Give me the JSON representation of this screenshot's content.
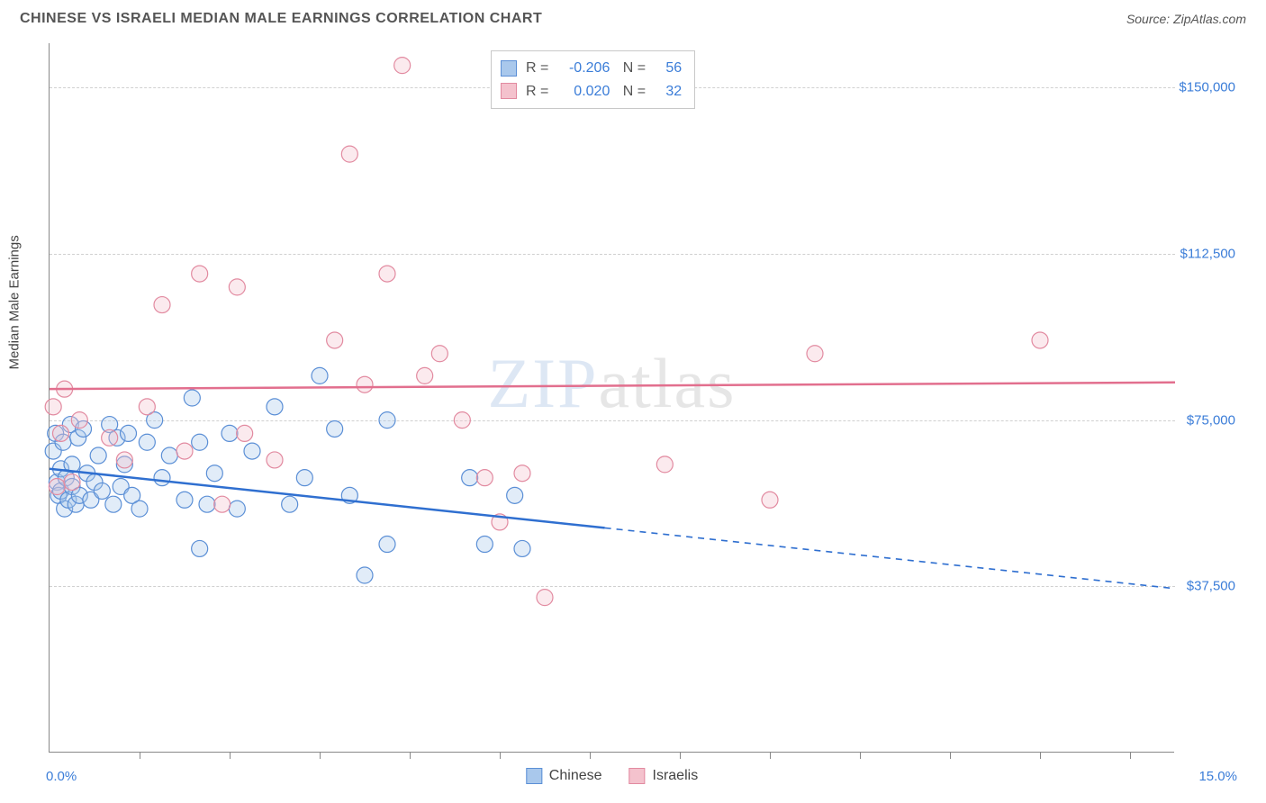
{
  "header": {
    "title": "CHINESE VS ISRAELI MEDIAN MALE EARNINGS CORRELATION CHART",
    "source": "Source: ZipAtlas.com"
  },
  "watermark": {
    "part1": "ZIP",
    "part2": "atlas"
  },
  "chart": {
    "type": "scatter",
    "background_color": "#ffffff",
    "grid_color": "#d0d0d0",
    "axis_color": "#888888",
    "label_color": "#3b7dd8",
    "yaxis_title": "Median Male Earnings",
    "xlim": [
      0,
      15
    ],
    "ylim": [
      0,
      160000
    ],
    "yticks": [
      {
        "value": 37500,
        "label": "$37,500"
      },
      {
        "value": 75000,
        "label": "$75,000"
      },
      {
        "value": 112500,
        "label": "$112,500"
      },
      {
        "value": 150000,
        "label": "$150,000"
      }
    ],
    "xtick_values": [
      1.2,
      2.4,
      3.6,
      4.8,
      6.0,
      7.2,
      8.4,
      9.6,
      10.8,
      12.0,
      13.2,
      14.4
    ],
    "xaxis_min_label": "0.0%",
    "xaxis_max_label": "15.0%",
    "marker_radius": 9,
    "marker_stroke_width": 1.2,
    "marker_fill_opacity": 0.35,
    "series": [
      {
        "name": "Chinese",
        "color_fill": "#a9c8ec",
        "color_stroke": "#5b8fd6",
        "line_color": "#2f6fd0",
        "R": "-0.206",
        "N": "56",
        "trend": {
          "y_at_xmin": 64000,
          "y_at_xmax": 37000,
          "solid_until_x": 7.4
        },
        "points": [
          [
            0.05,
            68000
          ],
          [
            0.08,
            72000
          ],
          [
            0.1,
            61000
          ],
          [
            0.12,
            58000
          ],
          [
            0.15,
            64000
          ],
          [
            0.15,
            59000
          ],
          [
            0.18,
            70000
          ],
          [
            0.2,
            55000
          ],
          [
            0.22,
            62000
          ],
          [
            0.25,
            57000
          ],
          [
            0.28,
            74000
          ],
          [
            0.3,
            60000
          ],
          [
            0.3,
            65000
          ],
          [
            0.35,
            56000
          ],
          [
            0.38,
            71000
          ],
          [
            0.4,
            58000
          ],
          [
            0.45,
            73000
          ],
          [
            0.5,
            63000
          ],
          [
            0.55,
            57000
          ],
          [
            0.6,
            61000
          ],
          [
            0.65,
            67000
          ],
          [
            0.7,
            59000
          ],
          [
            0.8,
            74000
          ],
          [
            0.85,
            56000
          ],
          [
            0.9,
            71000
          ],
          [
            0.95,
            60000
          ],
          [
            1.0,
            65000
          ],
          [
            1.05,
            72000
          ],
          [
            1.1,
            58000
          ],
          [
            1.2,
            55000
          ],
          [
            1.3,
            70000
          ],
          [
            1.4,
            75000
          ],
          [
            1.5,
            62000
          ],
          [
            1.6,
            67000
          ],
          [
            1.8,
            57000
          ],
          [
            1.9,
            80000
          ],
          [
            2.0,
            70000
          ],
          [
            2.0,
            46000
          ],
          [
            2.1,
            56000
          ],
          [
            2.2,
            63000
          ],
          [
            2.4,
            72000
          ],
          [
            2.5,
            55000
          ],
          [
            2.7,
            68000
          ],
          [
            3.0,
            78000
          ],
          [
            3.2,
            56000
          ],
          [
            3.4,
            62000
          ],
          [
            3.6,
            85000
          ],
          [
            3.8,
            73000
          ],
          [
            4.0,
            58000
          ],
          [
            4.2,
            40000
          ],
          [
            4.5,
            75000
          ],
          [
            4.5,
            47000
          ],
          [
            5.6,
            62000
          ],
          [
            5.8,
            47000
          ],
          [
            6.2,
            58000
          ],
          [
            6.3,
            46000
          ]
        ]
      },
      {
        "name": "Israelis",
        "color_fill": "#f4c2cd",
        "color_stroke": "#e28aa0",
        "line_color": "#e26f8e",
        "R": "0.020",
        "N": "32",
        "trend": {
          "y_at_xmin": 82000,
          "y_at_xmax": 83500,
          "solid_until_x": 15
        },
        "points": [
          [
            0.05,
            78000
          ],
          [
            0.1,
            60000
          ],
          [
            0.15,
            72000
          ],
          [
            0.2,
            82000
          ],
          [
            0.3,
            61000
          ],
          [
            0.4,
            75000
          ],
          [
            0.8,
            71000
          ],
          [
            1.0,
            66000
          ],
          [
            1.3,
            78000
          ],
          [
            1.5,
            101000
          ],
          [
            1.8,
            68000
          ],
          [
            2.0,
            108000
          ],
          [
            2.3,
            56000
          ],
          [
            2.5,
            105000
          ],
          [
            2.6,
            72000
          ],
          [
            3.0,
            66000
          ],
          [
            3.8,
            93000
          ],
          [
            4.0,
            135000
          ],
          [
            4.2,
            83000
          ],
          [
            4.5,
            108000
          ],
          [
            4.7,
            155000
          ],
          [
            5.0,
            85000
          ],
          [
            5.2,
            90000
          ],
          [
            5.5,
            75000
          ],
          [
            5.8,
            62000
          ],
          [
            6.0,
            52000
          ],
          [
            6.3,
            63000
          ],
          [
            6.6,
            35000
          ],
          [
            8.2,
            65000
          ],
          [
            9.6,
            57000
          ],
          [
            10.2,
            90000
          ],
          [
            13.2,
            93000
          ]
        ]
      }
    ]
  },
  "legend_bottom": [
    {
      "label": "Chinese",
      "fill": "#a9c8ec",
      "stroke": "#5b8fd6"
    },
    {
      "label": "Israelis",
      "fill": "#f4c2cd",
      "stroke": "#e28aa0"
    }
  ]
}
